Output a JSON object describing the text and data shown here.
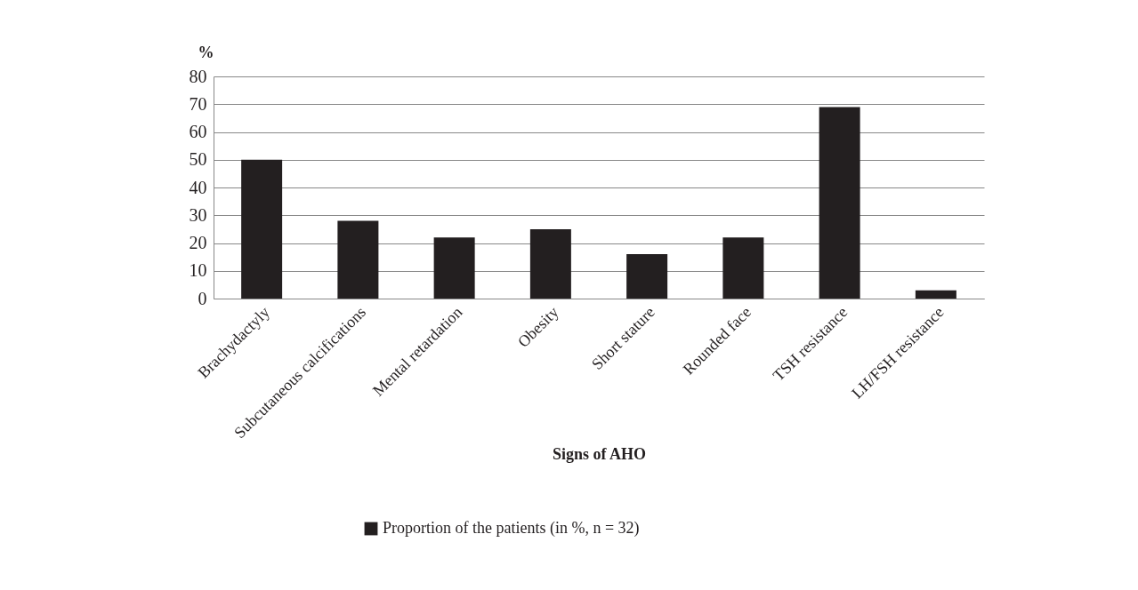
{
  "chart_data": {
    "type": "bar",
    "xlabel": "Signs of AHO",
    "ylabel": "%",
    "categories": [
      "Brachydactyly",
      "Subcutaneous calcifications",
      "Mental retardation",
      "Obesity",
      "Short stature",
      "Rounded face",
      "TSH resistance",
      "LH/FSH resistance"
    ],
    "series": [
      {
        "name": "Proportion of the patients (in %, n = 32)",
        "color": "#231f20",
        "values": [
          50,
          28,
          22,
          25,
          16,
          22,
          69,
          3
        ]
      }
    ],
    "ylim": [
      0,
      80
    ],
    "yticks": [
      0,
      10,
      20,
      30,
      40,
      50,
      60,
      70,
      80
    ],
    "grid": "y",
    "legend": "bottom"
  }
}
